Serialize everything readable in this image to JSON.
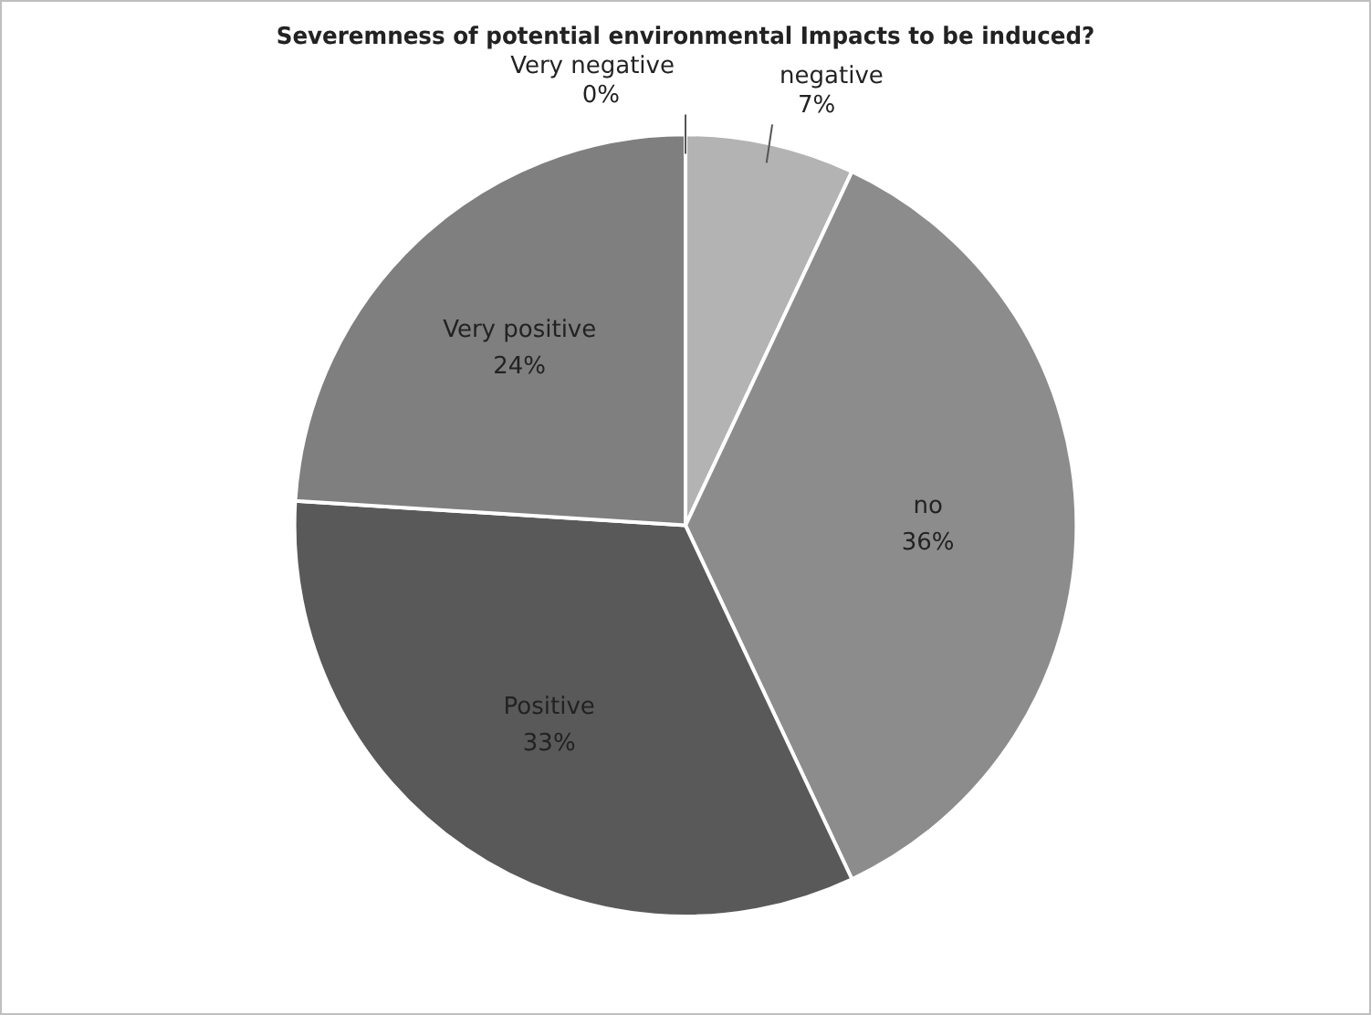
{
  "chart_data": {
    "type": "pie",
    "title": "Severemness of potential environmental Impacts to be induced?",
    "categories": [
      "Very negative",
      "negative",
      "no",
      "Positive",
      "Very positive"
    ],
    "values": [
      0,
      7,
      36,
      33,
      24
    ],
    "colors": [
      "#d9d9d9",
      "#b3b3b3",
      "#8c8c8c",
      "#595959",
      "#7f7f7f"
    ],
    "value_labels": [
      "0%",
      "7%",
      "36%",
      "33%",
      "24%"
    ],
    "legend": false
  }
}
